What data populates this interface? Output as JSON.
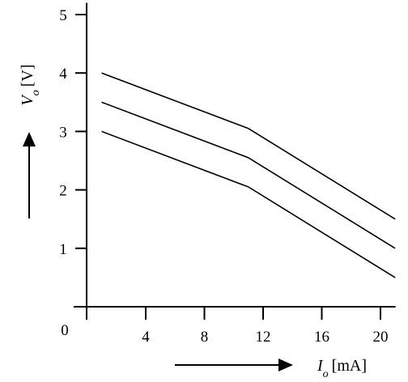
{
  "chart_data": {
    "type": "line",
    "title": "",
    "xlabel": {
      "symbol": "I",
      "subscript": "o",
      "unit": "[mA]"
    },
    "ylabel": {
      "symbol": "V",
      "subscript": "o",
      "unit": "[V]"
    },
    "origin_label": "0",
    "xlim": [
      -1.5,
      21
    ],
    "ylim": [
      0,
      5.2
    ],
    "x_ticks": [
      4,
      8,
      12,
      16,
      20
    ],
    "x_tick_labels": [
      "4",
      "8",
      "12",
      "16",
      "20"
    ],
    "y_ticks": [
      1,
      2,
      3,
      4,
      5
    ],
    "y_tick_labels": [
      "1",
      "2",
      "3",
      "4",
      "5"
    ],
    "grid": false,
    "series": [
      {
        "x": [
          1,
          11,
          21
        ],
        "y": [
          4.0,
          3.05,
          1.5
        ]
      },
      {
        "x": [
          1,
          11,
          21
        ],
        "y": [
          3.5,
          2.55,
          1.0
        ]
      },
      {
        "x": [
          1,
          11,
          21
        ],
        "y": [
          3.0,
          2.05,
          0.5
        ]
      }
    ],
    "colors": {
      "line": "#000000",
      "axis": "#000000"
    }
  }
}
